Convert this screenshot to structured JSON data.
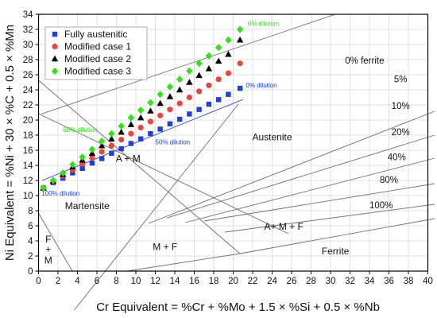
{
  "chart_data": {
    "type": "scatter",
    "title": "",
    "xlabel": "Cr Equivalent = %Cr + %Mo + 1.5 × %Si + 0.5 × %Nb",
    "ylabel": "Ni Equivalent = %Ni + 30 × %C + 0.5 × %Mn",
    "xlim": [
      0,
      40
    ],
    "ylim": [
      0,
      34
    ],
    "xticks": [
      0,
      2,
      4,
      6,
      8,
      10,
      12,
      14,
      16,
      18,
      20,
      22,
      24,
      26,
      28,
      30,
      32,
      34,
      36,
      38,
      40
    ],
    "yticks": [
      0,
      2,
      4,
      6,
      8,
      10,
      12,
      14,
      16,
      18,
      20,
      22,
      24,
      26,
      28,
      30,
      32,
      34
    ],
    "grid": true,
    "legend_position": "top-left",
    "series": [
      {
        "name": "Fully austenitic",
        "marker": "square",
        "color": "#1f3fd6",
        "points": [
          [
            0.5,
            11.0
          ],
          [
            1.5,
            11.7
          ],
          [
            2.5,
            12.3
          ],
          [
            3.5,
            13.0
          ],
          [
            4.5,
            13.6
          ],
          [
            5.5,
            14.3
          ],
          [
            6.5,
            14.9
          ],
          [
            7.5,
            15.6
          ],
          [
            8.5,
            16.2
          ],
          [
            9.5,
            16.9
          ],
          [
            10.5,
            17.5
          ],
          [
            11.5,
            18.2
          ],
          [
            12.5,
            18.8
          ],
          [
            13.5,
            19.5
          ],
          [
            14.5,
            20.1
          ],
          [
            15.5,
            20.8
          ],
          [
            16.5,
            21.4
          ],
          [
            17.5,
            22.1
          ],
          [
            18.5,
            22.7
          ],
          [
            19.5,
            23.4
          ],
          [
            20.7,
            24.2
          ]
        ]
      },
      {
        "name": "Modified case 1",
        "marker": "circle",
        "color": "#e8453c",
        "points": [
          [
            0.5,
            11.0
          ],
          [
            1.5,
            11.8
          ],
          [
            2.5,
            12.6
          ],
          [
            3.5,
            13.4
          ],
          [
            4.5,
            14.2
          ],
          [
            5.5,
            15.0
          ],
          [
            6.5,
            15.8
          ],
          [
            7.5,
            16.6
          ],
          [
            8.5,
            17.4
          ],
          [
            9.5,
            18.2
          ],
          [
            10.5,
            19.0
          ],
          [
            11.5,
            19.8
          ],
          [
            12.5,
            20.6
          ],
          [
            13.5,
            21.4
          ],
          [
            14.5,
            22.2
          ],
          [
            15.5,
            23.0
          ],
          [
            16.5,
            23.8
          ],
          [
            17.5,
            24.6
          ],
          [
            18.5,
            25.4
          ],
          [
            19.5,
            26.2
          ],
          [
            20.7,
            27.5
          ]
        ]
      },
      {
        "name": "Modified case 2",
        "marker": "triangle",
        "color": "#000000",
        "points": [
          [
            0.5,
            11.0
          ],
          [
            1.5,
            11.9
          ],
          [
            2.5,
            12.8
          ],
          [
            3.5,
            13.8
          ],
          [
            4.5,
            14.7
          ],
          [
            5.5,
            15.6
          ],
          [
            6.5,
            16.6
          ],
          [
            7.5,
            17.5
          ],
          [
            8.5,
            18.4
          ],
          [
            9.5,
            19.4
          ],
          [
            10.5,
            20.3
          ],
          [
            11.5,
            21.2
          ],
          [
            12.5,
            22.2
          ],
          [
            13.5,
            23.1
          ],
          [
            14.5,
            24.0
          ],
          [
            15.5,
            25.0
          ],
          [
            16.5,
            25.9
          ],
          [
            17.5,
            26.8
          ],
          [
            18.5,
            27.8
          ],
          [
            19.5,
            28.7
          ],
          [
            20.7,
            30.6
          ]
        ]
      },
      {
        "name": "Modified case 3",
        "marker": "diamond",
        "color": "#33e01a",
        "points": [
          [
            0.5,
            11.0
          ],
          [
            1.5,
            12.0
          ],
          [
            2.5,
            13.0
          ],
          [
            3.5,
            14.1
          ],
          [
            4.5,
            15.1
          ],
          [
            5.5,
            16.1
          ],
          [
            6.5,
            17.2
          ],
          [
            7.5,
            18.2
          ],
          [
            8.5,
            19.2
          ],
          [
            9.5,
            20.3
          ],
          [
            10.5,
            21.3
          ],
          [
            11.5,
            22.3
          ],
          [
            12.5,
            23.4
          ],
          [
            13.5,
            24.4
          ],
          [
            14.5,
            25.4
          ],
          [
            15.5,
            26.5
          ],
          [
            16.5,
            27.5
          ],
          [
            17.5,
            28.5
          ],
          [
            18.5,
            29.6
          ],
          [
            19.5,
            30.6
          ],
          [
            20.7,
            32.0
          ]
        ]
      }
    ],
    "ferrite_line_labels": [
      {
        "text": "0% ferrite",
        "x": 33.5,
        "y": 27.5
      },
      {
        "text": "5%",
        "x": 37.2,
        "y": 25.0
      },
      {
        "text": "10%",
        "x": 37.2,
        "y": 21.5
      },
      {
        "text": "20%",
        "x": 37.2,
        "y": 18.0
      },
      {
        "text": "40%",
        "x": 36.8,
        "y": 14.7
      },
      {
        "text": "80%",
        "x": 36.0,
        "y": 11.7
      },
      {
        "text": "100%",
        "x": 35.2,
        "y": 8.3
      }
    ],
    "region_labels": [
      {
        "text": "Austenite",
        "x": 24.0,
        "y": 17.3
      },
      {
        "text": "A + M",
        "x": 9.2,
        "y": 14.5
      },
      {
        "text": "Martensite",
        "x": 5.0,
        "y": 8.2
      },
      {
        "text": "A+ M + F",
        "x": 25.2,
        "y": 5.5
      },
      {
        "text": "M + F",
        "x": 13.0,
        "y": 2.8
      },
      {
        "text": "Ferrite",
        "x": 30.5,
        "y": 2.2
      },
      {
        "text": "F",
        "x": 1.0,
        "y": 3.8
      },
      {
        "text": "+",
        "x": 1.0,
        "y": 2.5
      },
      {
        "text": "M",
        "x": 1.0,
        "y": 1.0
      }
    ],
    "dilution_labels": [
      {
        "text": "0% dilution",
        "x": 21.5,
        "y": 32.5,
        "color": "#33e01a"
      },
      {
        "text": "0% dilution",
        "x": 21.3,
        "y": 24.3,
        "color": "#1f3fd6"
      },
      {
        "text": "60% dilution",
        "x": 2.5,
        "y": 18.4,
        "color": "#33e01a"
      },
      {
        "text": "50% dilution",
        "x": 12.0,
        "y": 16.8,
        "color": "#1f3fd6"
      },
      {
        "text": "100% dilution",
        "x": 0.3,
        "y": 10.0,
        "color": "#1f3fd6"
      }
    ]
  }
}
